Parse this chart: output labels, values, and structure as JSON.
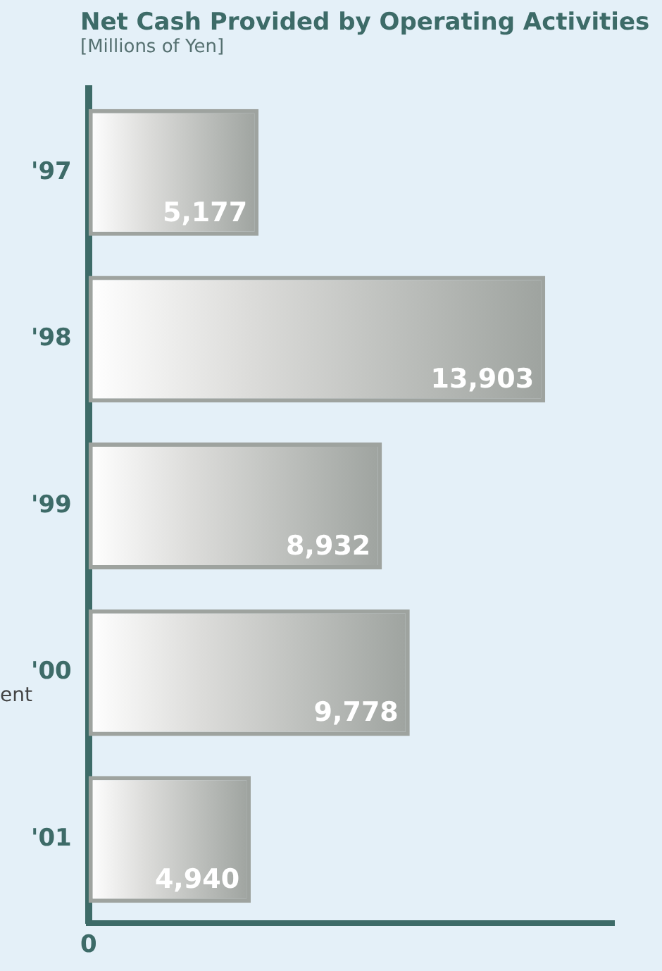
{
  "chart_data": {
    "type": "bar",
    "orientation": "horizontal",
    "title": "Net Cash Provided by Operating Activities",
    "subtitle": "[Millions of Yen]",
    "categories": [
      "'97",
      "'98",
      "'99",
      "'00",
      "'01"
    ],
    "values": [
      5177,
      13903,
      8932,
      9778,
      4940
    ],
    "value_labels": [
      "5,177",
      "13,903",
      "8,932",
      "9,778",
      "4,940"
    ],
    "color": "#9ea39f",
    "tick_labels": "y",
    "grid": false,
    "legend": false,
    "annotations": [
      "ent",
      "0"
    ]
  }
}
